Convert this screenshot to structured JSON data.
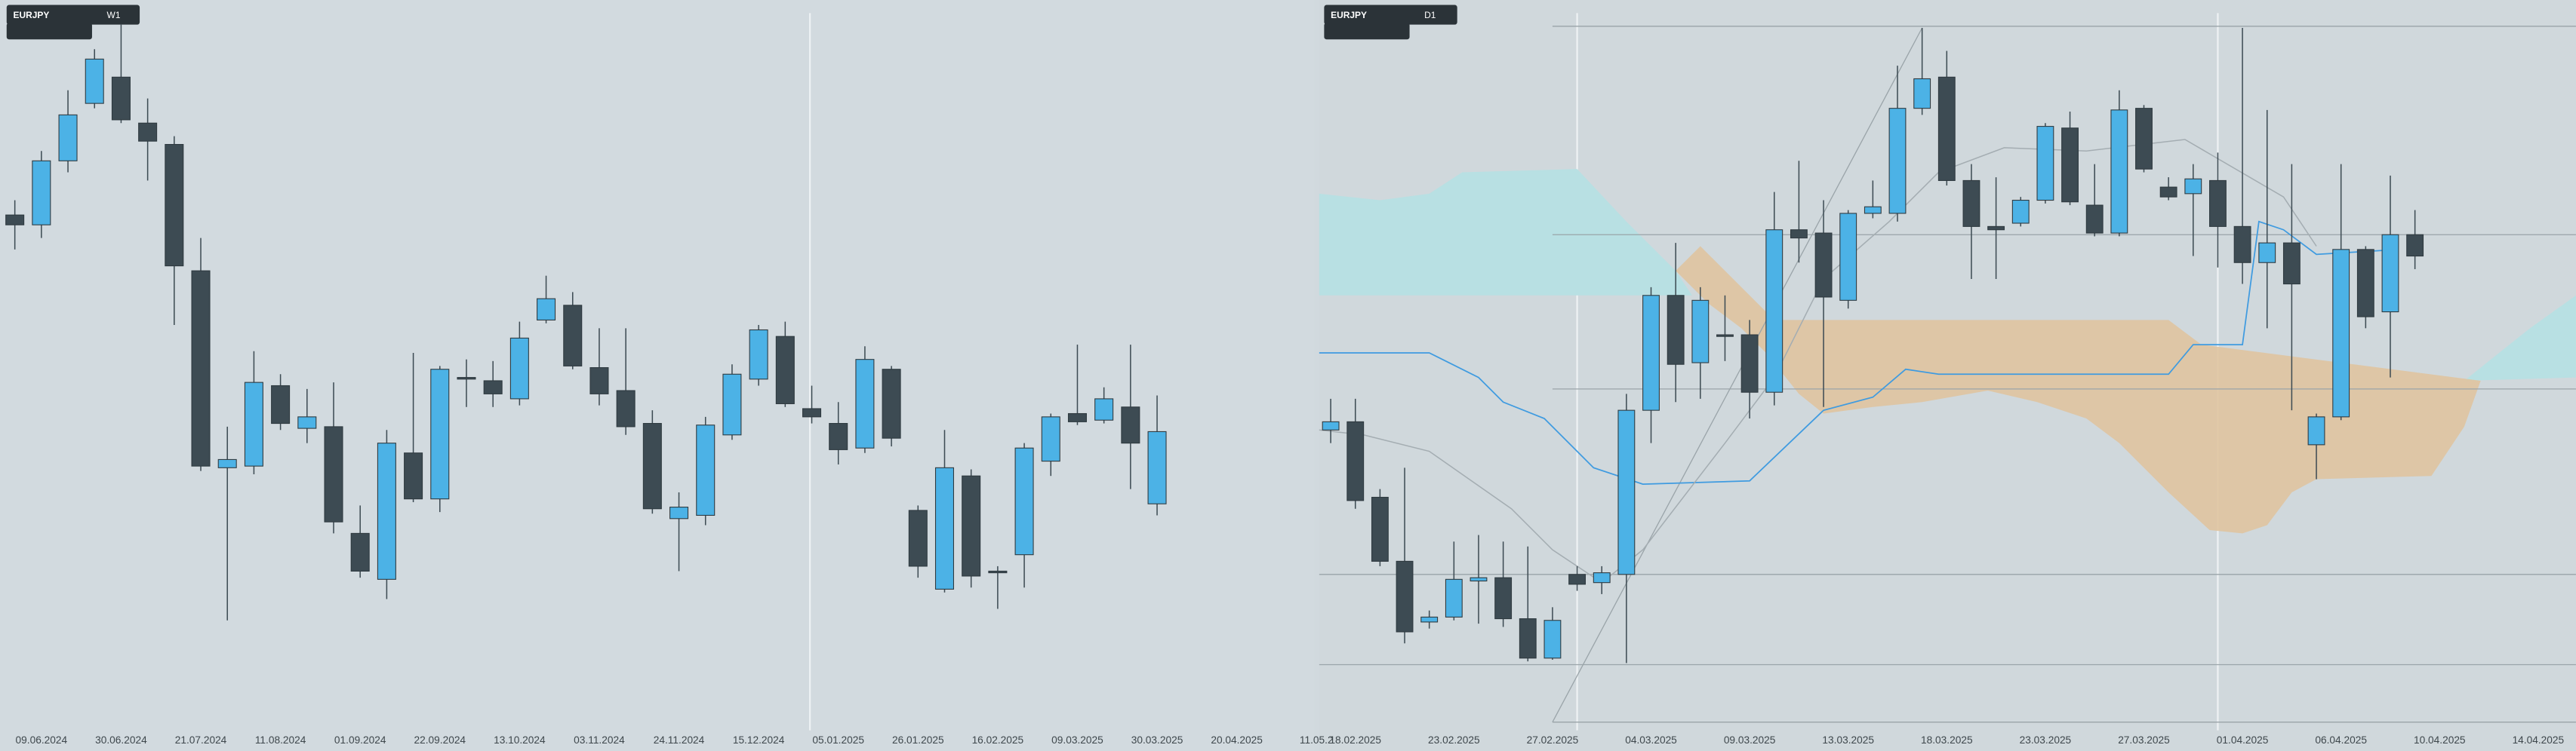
{
  "toolbars": [
    {
      "symbol": "EURJPY",
      "timeframe": "W1"
    },
    {
      "symbol": "EURJPY",
      "timeframe": "D1"
    }
  ],
  "chart_data": [
    {
      "type": "candlestick",
      "up_color": "#4cb2e6",
      "down_color": "#3d4b53",
      "ylim": [
        154,
        176
      ],
      "categories": [
        null,
        "09.06.2024",
        null,
        null,
        "30.06.2024",
        null,
        null,
        "21.07.2024",
        null,
        null,
        "11.08.2024",
        null,
        null,
        "01.09.2024",
        null,
        null,
        "22.09.2024",
        null,
        null,
        "13.10.2024",
        null,
        null,
        "03.11.2024",
        null,
        null,
        "24.11.2024",
        null,
        null,
        "15.12.2024",
        null,
        null,
        "05.01.2025",
        null,
        null,
        "26.01.2025",
        null,
        null,
        "16.02.2025",
        null,
        null,
        "09.03.2025",
        null,
        null,
        "30.03.2025",
        null,
        null,
        "20.04.2025",
        null,
        null,
        "11.05.2"
      ],
      "open": [
        169.45,
        169.15,
        171.1,
        172.85,
        173.65,
        172.25,
        171.6,
        167.75,
        161.75,
        161.8,
        164.25,
        162.95,
        163,
        159.75,
        158.35,
        162.2,
        160.8,
        164.5,
        164.4,
        163.85,
        166.25,
        166.7,
        164.8,
        164.1,
        163.1,
        160.2,
        160.3,
        162.75,
        164.45,
        165.75,
        163.55,
        163.1,
        162.35,
        164.75,
        160.45,
        158.05,
        161.5,
        158.6,
        159.1,
        161.95,
        163.4,
        163.2,
        163.6,
        160.65,
        null,
        null,
        null,
        null,
        null,
        null
      ],
      "high": [
        169.9,
        171.4,
        173.25,
        174.5,
        175.25,
        173,
        171.85,
        168.75,
        163,
        165.3,
        164.6,
        164.15,
        164.35,
        160.6,
        162.9,
        165.25,
        164.85,
        165.05,
        165,
        166.2,
        167.6,
        167.1,
        166,
        166,
        163.5,
        161,
        163.3,
        164.9,
        166.1,
        166.2,
        164.25,
        163.75,
        165.45,
        164.85,
        160.6,
        162.9,
        161.7,
        158.75,
        162.5,
        163.4,
        165.5,
        164.2,
        165.5,
        163.95,
        null,
        null,
        null,
        null,
        null,
        null
      ],
      "low": [
        168.4,
        168.75,
        170.75,
        172.7,
        172.25,
        170.5,
        166.1,
        161.65,
        157.1,
        161.55,
        162.9,
        162.5,
        159.75,
        158.4,
        157.75,
        160.7,
        160.4,
        163.6,
        163.6,
        163.65,
        166.15,
        164.75,
        163.65,
        162.75,
        160.35,
        158.6,
        160,
        162.6,
        164.25,
        163.6,
        163.1,
        161.85,
        162.2,
        162.4,
        158.4,
        157.95,
        158.1,
        157.45,
        158.1,
        161.5,
        163.05,
        163.1,
        161.1,
        160.3,
        null,
        null,
        null,
        null,
        null,
        null
      ],
      "close": [
        169.15,
        171.1,
        172.5,
        174.2,
        172.35,
        171.7,
        167.9,
        161.8,
        162,
        164.35,
        163.1,
        163.3,
        160.1,
        158.6,
        162.5,
        160.8,
        164.75,
        164.45,
        164,
        165.7,
        166.9,
        164.85,
        164,
        163,
        160.5,
        160.55,
        163.05,
        164.6,
        165.95,
        163.7,
        163.3,
        162.3,
        165.05,
        162.65,
        158.75,
        161.75,
        158.45,
        158.55,
        162.35,
        163.3,
        163.15,
        163.85,
        162.5,
        162.85,
        null,
        null,
        null,
        null,
        null,
        null
      ]
    },
    {
      "type": "candlestick",
      "up_color": "#4cb2e6",
      "down_color": "#3d4b53",
      "ylim": [
        155,
        166
      ],
      "categories": [
        null,
        "18.02.2025",
        null,
        null,
        null,
        "23.02.2025",
        null,
        null,
        null,
        "27.02.2025",
        null,
        null,
        null,
        "04.03.2025",
        null,
        null,
        null,
        "09.03.2025",
        null,
        null,
        null,
        "13.03.2025",
        null,
        null,
        null,
        "18.03.2025",
        null,
        null,
        null,
        "23.03.2025",
        null,
        null,
        null,
        "27.03.2025",
        null,
        null,
        null,
        "01.04.2025",
        null,
        null,
        null,
        "06.04.2025",
        null,
        null,
        null,
        "10.04.2025",
        null,
        null,
        null,
        "14.04.2025"
      ],
      "open": [
        159.45,
        159.575,
        158.425,
        157.45,
        156.525,
        156.6,
        157.15,
        157.2,
        156.575,
        155.975,
        157.25,
        157.125,
        157.25,
        159.75,
        161.5,
        160.475,
        160.9,
        160.9,
        160.025,
        162.5,
        162.45,
        161.425,
        162.75,
        162.75,
        164.35,
        164.825,
        163.25,
        162.55,
        162.6,
        162.95,
        164.05,
        162.875,
        162.45,
        164.35,
        163.15,
        163.05,
        163.25,
        162.55,
        162,
        162.3,
        159.225,
        159.65,
        162.2,
        161.25,
        162.425,
        null,
        null,
        null,
        null,
        null
      ],
      "high": [
        159.925,
        159.925,
        158.55,
        158.875,
        156.7,
        157.75,
        157.85,
        157.75,
        157.675,
        156.75,
        157.375,
        157.375,
        160,
        161.625,
        162.3,
        161.625,
        161.5,
        161.125,
        163.075,
        163.55,
        162.95,
        162.8,
        163.25,
        165,
        165.575,
        165.225,
        163.5,
        163.3,
        163,
        164.125,
        164.3,
        163.5,
        164.625,
        164.4,
        163.3,
        163.5,
        163.675,
        165.575,
        164.325,
        163.5,
        159.7,
        163.5,
        162.25,
        163.325,
        162.8,
        null,
        null,
        null,
        null,
        null
      ],
      "low": [
        159.25,
        158.25,
        157.375,
        156.2,
        156.425,
        156.55,
        156.5,
        156.45,
        155.925,
        155.95,
        157,
        156.95,
        155.9,
        159.25,
        159.875,
        159.925,
        160.5,
        159.625,
        159.825,
        162,
        159.8,
        161.3,
        162.675,
        162.625,
        164.25,
        163.175,
        161.75,
        161.75,
        162.55,
        162.9,
        162.875,
        162.4,
        162.4,
        163.375,
        162.95,
        162.1,
        161.925,
        161.675,
        161,
        159.75,
        158.7,
        159.6,
        161,
        160.25,
        161.9,
        null,
        null,
        null,
        null,
        null
      ],
      "close": [
        159.575,
        158.375,
        157.45,
        156.375,
        156.6,
        157.175,
        157.2,
        156.575,
        155.975,
        156.55,
        157.1,
        157.275,
        159.75,
        161.5,
        160.45,
        161.425,
        160.875,
        160.025,
        162.5,
        162.375,
        161.475,
        162.75,
        162.85,
        164.35,
        164.8,
        163.25,
        162.55,
        162.5,
        162.95,
        164.075,
        162.925,
        162.45,
        164.325,
        163.425,
        163,
        163.275,
        162.55,
        162,
        162.3,
        161.675,
        159.65,
        162.2,
        161.175,
        162.425,
        162.1,
        null,
        null,
        null,
        null,
        null
      ]
    }
  ]
}
